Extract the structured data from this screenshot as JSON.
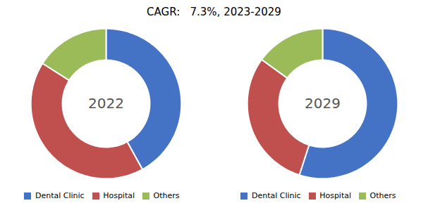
{
  "chart_data": [
    {
      "type": "pie",
      "title": "CAGR:   7.3%, 2023-2029",
      "annotation": "2022",
      "categories": [
        "Dental Clinic",
        "Hospital",
        "Others"
      ],
      "values": [
        42,
        42,
        16
      ],
      "colors": [
        "#4472C4",
        "#C0504D",
        "#9BBB59"
      ],
      "legend": "bottom"
    },
    {
      "type": "pie",
      "annotation": "2029",
      "categories": [
        "Dental Clinic",
        "Hospital",
        "Others"
      ],
      "values": [
        55,
        30,
        15
      ],
      "colors": [
        "#4472C4",
        "#C0504D",
        "#9BBB59"
      ],
      "legend": "bottom"
    }
  ]
}
